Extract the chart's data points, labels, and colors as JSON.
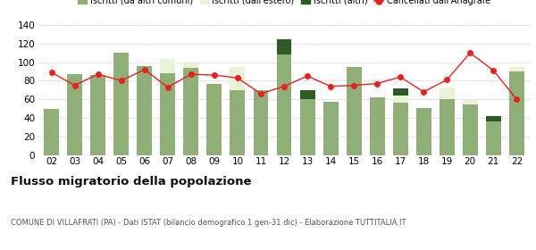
{
  "years": [
    "02",
    "03",
    "04",
    "05",
    "06",
    "07",
    "08",
    "09",
    "10",
    "11",
    "12",
    "13",
    "14",
    "15",
    "16",
    "17",
    "18",
    "19",
    "20",
    "21",
    "22"
  ],
  "iscritti_altri_comuni": [
    50,
    87,
    86,
    110,
    96,
    88,
    94,
    77,
    70,
    70,
    108,
    60,
    57,
    95,
    62,
    56,
    51,
    60,
    54,
    36,
    90
  ],
  "iscritti_estero": [
    0,
    0,
    0,
    0,
    0,
    15,
    7,
    0,
    25,
    0,
    0,
    0,
    0,
    0,
    0,
    8,
    0,
    13,
    5,
    0,
    5
  ],
  "iscritti_altri": [
    0,
    0,
    0,
    0,
    0,
    0,
    0,
    0,
    0,
    0,
    17,
    10,
    0,
    0,
    0,
    8,
    0,
    0,
    0,
    6,
    0
  ],
  "cancellati": [
    89,
    75,
    87,
    80,
    92,
    73,
    87,
    86,
    83,
    66,
    74,
    85,
    74,
    75,
    77,
    84,
    68,
    81,
    110,
    91,
    60
  ],
  "color_altri_comuni": "#8fae78",
  "color_estero": "#eaf2d8",
  "color_altri": "#2d5a27",
  "color_cancellati": "#e82020",
  "ylim": [
    0,
    140
  ],
  "yticks": [
    0,
    20,
    40,
    60,
    80,
    100,
    120,
    140
  ],
  "title": "Flusso migratorio della popolazione",
  "subtitle": "COMUNE DI VILLAFRATI (PA) - Dati ISTAT (bilancio demografico 1 gen-31 dic) - Elaborazione TUTTITALIA.IT",
  "legend_labels": [
    "Iscritti (da altri comuni)",
    "Iscritti (dall'estero)",
    "Iscritti (altri)",
    "Cancellati dall'Anagrafe"
  ],
  "bg_color": "#ffffff",
  "grid_color": "#cccccc"
}
